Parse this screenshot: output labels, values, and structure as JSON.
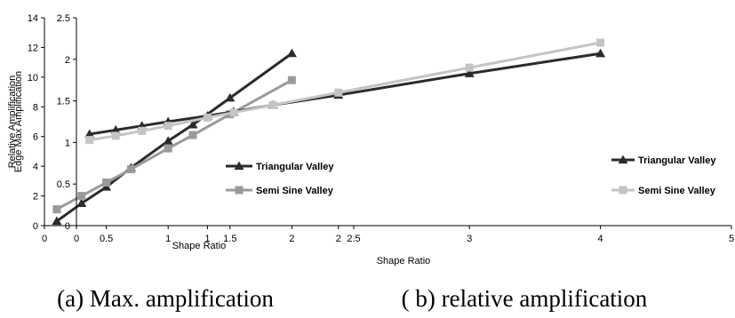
{
  "captions": [
    "(a) Max. amplification",
    "( b) relative amplification"
  ],
  "chart_data": [
    {
      "type": "line",
      "title": "",
      "xlabel": "Shape Ratio",
      "ylabel": "Relative Amplification",
      "xlim": [
        0,
        2.5
      ],
      "ylim": [
        0,
        14
      ],
      "xticks": [
        0,
        0.5,
        1,
        1.5,
        2,
        2.5
      ],
      "xtick_labels": [
        "0",
        "0.5",
        "1",
        "1.5",
        "2",
        "2.5"
      ],
      "yticks": [
        0,
        2,
        4,
        6,
        8,
        10,
        12,
        14
      ],
      "ytick_labels": [
        "0",
        "2",
        "4",
        "6",
        "8",
        "10",
        "12",
        "14"
      ],
      "grid": false,
      "legend": "center-right",
      "series": [
        {
          "name": "Triangular Valley",
          "color": "#2b2b2b",
          "marker": "triangle",
          "x": [
            0.1,
            0.3,
            0.5,
            0.7,
            1.0,
            1.2,
            1.5,
            2.0
          ],
          "y": [
            0.3,
            1.5,
            2.6,
            3.9,
            5.7,
            6.8,
            8.6,
            11.6
          ]
        },
        {
          "name": "Semi Sine Valley",
          "color": "#9a9a9a",
          "marker": "square",
          "x": [
            0.1,
            0.3,
            0.5,
            0.7,
            1.0,
            1.2,
            1.5,
            2.0
          ],
          "y": [
            1.1,
            2.0,
            2.9,
            3.8,
            5.2,
            6.1,
            7.5,
            9.8
          ]
        }
      ]
    },
    {
      "type": "line",
      "title": "",
      "xlabel": "Shape Ratio",
      "ylabel": "Edge Max Amplification",
      "xlim": [
        0,
        5
      ],
      "ylim": [
        0,
        2.5
      ],
      "xticks": [
        0,
        1,
        2,
        3,
        4,
        5
      ],
      "xtick_labels": [
        "0",
        "1",
        "2",
        "3",
        "4",
        "5"
      ],
      "yticks": [
        0,
        0.5,
        1,
        1.5,
        2,
        2.5
      ],
      "ytick_labels": [
        "0",
        "0.5",
        "1",
        "1.5",
        "2",
        "2.5"
      ],
      "grid": false,
      "legend": "center-right",
      "series": [
        {
          "name": "Triangular Valley",
          "color": "#2b2b2b",
          "marker": "triangle",
          "x": [
            0.1,
            0.3,
            0.5,
            0.7,
            1.0,
            1.2,
            1.5,
            2.0,
            3.0,
            4.0
          ],
          "y": [
            1.1,
            1.15,
            1.2,
            1.25,
            1.32,
            1.37,
            1.45,
            1.57,
            1.83,
            2.07
          ]
        },
        {
          "name": "Semi Sine Valley",
          "color": "#c4c4c4",
          "marker": "square",
          "x": [
            0.1,
            0.3,
            0.5,
            0.7,
            1.0,
            1.2,
            1.5,
            2.0,
            3.0,
            4.0
          ],
          "y": [
            1.03,
            1.08,
            1.14,
            1.2,
            1.3,
            1.36,
            1.45,
            1.6,
            1.9,
            2.2
          ]
        }
      ]
    }
  ]
}
